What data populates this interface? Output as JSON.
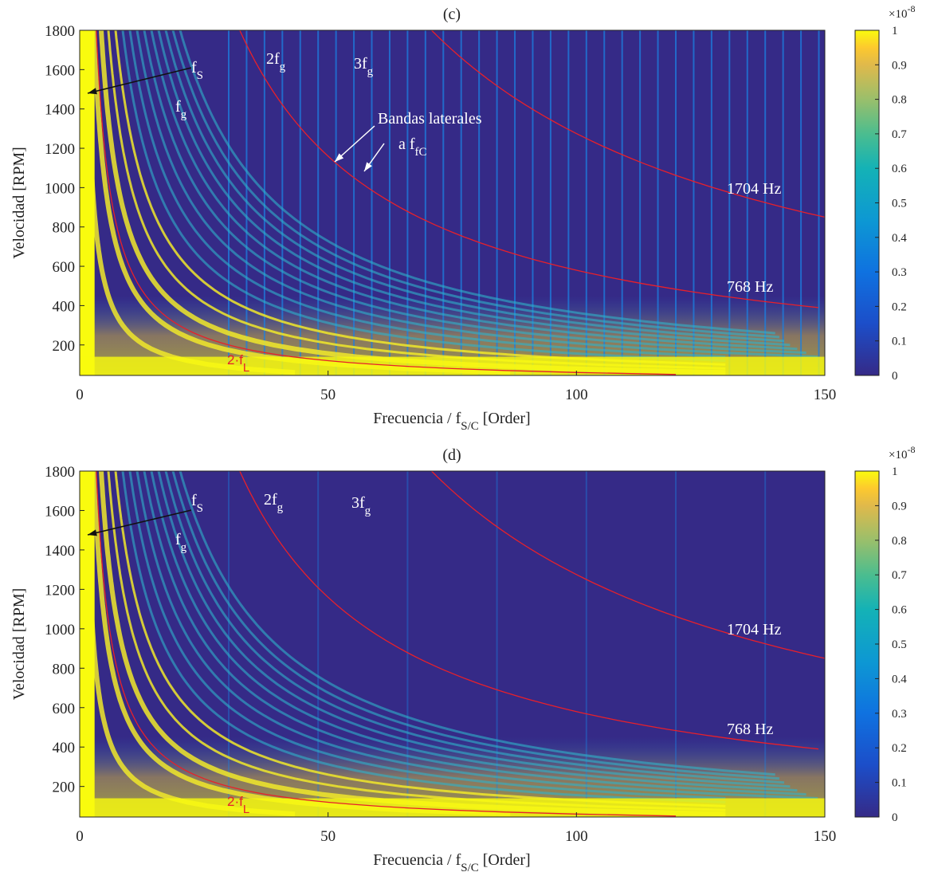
{
  "chart_data": [
    {
      "type": "heatmap",
      "title": "(c)",
      "ylabel": "Velocidad [RPM]",
      "xlabel": {
        "text": "Frecuencia / f",
        "sub": "S/C",
        "after": " [Order]"
      },
      "xlim": [
        0,
        150
      ],
      "xticks": [
        0,
        50,
        100,
        150
      ],
      "ylim": [
        45,
        1800
      ],
      "yticks": [
        200,
        400,
        600,
        800,
        1000,
        1200,
        1400,
        1600,
        1800
      ],
      "clim": [
        0,
        1
      ],
      "cticks": [
        0,
        0.1,
        0.2,
        0.3,
        0.4,
        0.5,
        0.6,
        0.7,
        0.8,
        0.9,
        1
      ],
      "colorbar_exponent": {
        "base": "×10",
        "power": "-8"
      },
      "annotations": [
        {
          "text": "f",
          "sub": "S"
        },
        {
          "text": "f",
          "sub": "g"
        },
        {
          "text": "2f",
          "sub": "g"
        },
        {
          "text": "3f",
          "sub": "g"
        },
        {
          "text": "Bandas laterales"
        },
        {
          "text": "a f",
          "sub": "fC"
        },
        {
          "text": "1704 Hz"
        },
        {
          "text": "768 Hz"
        },
        {
          "text": "2·f",
          "sub": "L"
        }
      ]
    },
    {
      "type": "heatmap",
      "title": "(d)",
      "ylabel": "Velocidad [RPM]",
      "xlabel": {
        "text": "Frecuencia / f",
        "sub": "S/C",
        "after": " [Order]"
      },
      "xlim": [
        0,
        150
      ],
      "xticks": [
        0,
        50,
        100,
        150
      ],
      "ylim": [
        45,
        1800
      ],
      "yticks": [
        200,
        400,
        600,
        800,
        1000,
        1200,
        1400,
        1600,
        1800
      ],
      "clim": [
        0,
        1
      ],
      "cticks": [
        0,
        0.1,
        0.2,
        0.3,
        0.4,
        0.5,
        0.6,
        0.7,
        0.8,
        0.9,
        1
      ],
      "colorbar_exponent": {
        "base": "×10",
        "power": "-8"
      },
      "annotations": [
        {
          "text": "f",
          "sub": "S"
        },
        {
          "text": "f",
          "sub": "g"
        },
        {
          "text": "2f",
          "sub": "g"
        },
        {
          "text": "3f",
          "sub": "g"
        },
        {
          "text": "1704 Hz"
        },
        {
          "text": "768 Hz"
        },
        {
          "text": "2·f",
          "sub": "L"
        }
      ]
    }
  ]
}
